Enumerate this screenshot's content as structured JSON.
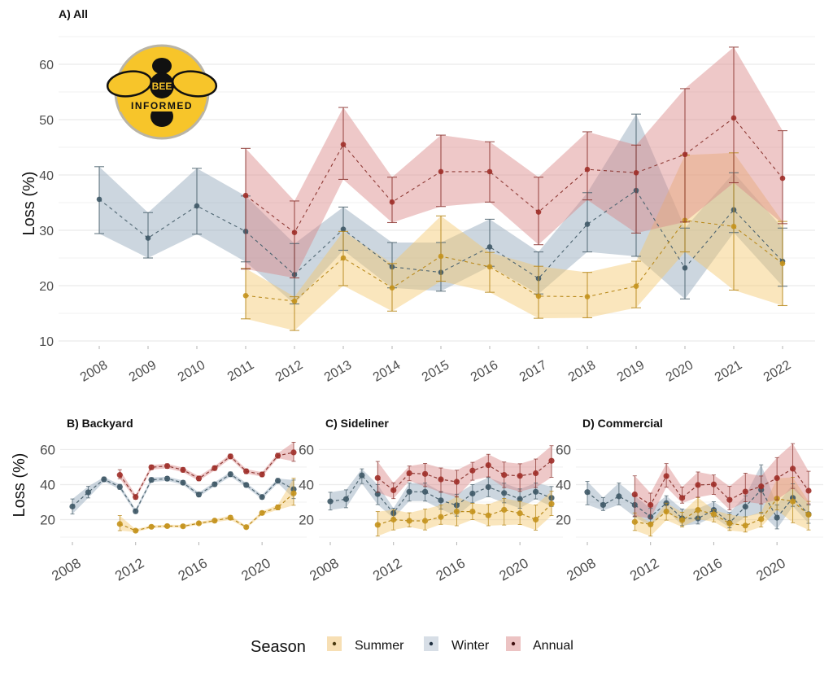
{
  "colors": {
    "summer": {
      "point": "#c4921c",
      "line": "#b98a1d",
      "ribbon": "#f3c86d"
    },
    "winter": {
      "point": "#3e5866",
      "line": "#4d6470",
      "ribbon": "#8ea5b8"
    },
    "annual": {
      "point": "#9e2e28",
      "line": "#8e3a35",
      "ribbon": "#d98585"
    },
    "grid": "#ebebeb",
    "tick": "#b3b3b3"
  },
  "logo": {
    "line1": "BEE",
    "line2": "INFORMED"
  },
  "legend": {
    "title": "Season",
    "items": [
      {
        "key": "summer",
        "label": "Summer"
      },
      {
        "key": "winter",
        "label": "Winter"
      },
      {
        "key": "annual",
        "label": "Annual"
      }
    ]
  },
  "chart_data": [
    {
      "type": "line",
      "title": "A) All",
      "xlabel": "",
      "ylabel": "Loss (%)",
      "ylim": [
        10,
        65
      ],
      "yticks": [
        10,
        20,
        30,
        40,
        50,
        60
      ],
      "xlim": [
        2008,
        2022
      ],
      "xticks": [
        2008,
        2009,
        2010,
        2011,
        2012,
        2013,
        2014,
        2015,
        2016,
        2017,
        2018,
        2019,
        2020,
        2021,
        2022
      ],
      "grid": true,
      "series": [
        {
          "name": "Winter",
          "key": "winter",
          "x": [
            2008,
            2009,
            2010,
            2011,
            2012,
            2013,
            2014,
            2015,
            2016,
            2017,
            2018,
            2019,
            2020,
            2021,
            2022
          ],
          "y": [
            35.6,
            28.6,
            34.4,
            29.8,
            22.0,
            30.2,
            23.4,
            22.4,
            27.0,
            21.3,
            31.1,
            37.2,
            23.2,
            33.7,
            24.4
          ],
          "lower": [
            29.4,
            25.0,
            29.3,
            24.3,
            16.7,
            26.4,
            19.6,
            19.0,
            23.5,
            18.5,
            26.1,
            25.3,
            17.6,
            29.6,
            19.9
          ],
          "upper": [
            41.5,
            33.2,
            41.2,
            36.2,
            27.6,
            34.2,
            27.8,
            27.8,
            32.0,
            26.1,
            36.8,
            51.0,
            30.4,
            40.4,
            30.4
          ]
        },
        {
          "name": "Summer",
          "key": "summer",
          "x": [
            2011,
            2012,
            2013,
            2014,
            2015,
            2016,
            2017,
            2018,
            2019,
            2020,
            2021,
            2022
          ],
          "y": [
            18.2,
            17.2,
            25.0,
            19.6,
            25.3,
            23.4,
            18.1,
            18.0,
            19.9,
            31.8,
            30.7,
            24.0
          ],
          "lower": [
            14.0,
            11.9,
            20.0,
            15.4,
            20.8,
            18.8,
            14.1,
            14.2,
            16.0,
            26.1,
            19.2,
            16.4
          ],
          "upper": [
            23.1,
            18.0,
            29.8,
            24.0,
            32.6,
            26.0,
            23.5,
            22.4,
            24.4,
            43.6,
            44.0,
            31.6
          ]
        },
        {
          "name": "Annual",
          "key": "annual",
          "x": [
            2011,
            2012,
            2013,
            2014,
            2015,
            2016,
            2017,
            2018,
            2019,
            2020,
            2021,
            2022
          ],
          "y": [
            36.3,
            29.6,
            45.5,
            35.1,
            40.6,
            40.6,
            33.3,
            41.0,
            40.4,
            43.7,
            50.3,
            39.4
          ],
          "lower": [
            23.0,
            21.4,
            39.2,
            31.4,
            34.3,
            35.1,
            27.4,
            35.5,
            29.5,
            31.5,
            38.6,
            31.2
          ],
          "upper": [
            44.8,
            35.3,
            52.2,
            39.6,
            47.2,
            46.0,
            39.6,
            47.8,
            45.4,
            55.6,
            63.1,
            48.0
          ]
        }
      ]
    },
    {
      "type": "line",
      "title": "B) Backyard",
      "xlabel": "",
      "ylabel": "Loss (%)",
      "ylim": [
        10,
        63
      ],
      "yticks": [
        20,
        40,
        60
      ],
      "xlim": [
        2008,
        2022
      ],
      "xticks": [
        2008,
        2012,
        2016,
        2020
      ],
      "grid": true,
      "series": [
        {
          "name": "Winter",
          "key": "winter",
          "x": [
            2008,
            2009,
            2010,
            2011,
            2012,
            2013,
            2014,
            2015,
            2016,
            2017,
            2018,
            2019,
            2020,
            2021,
            2022
          ],
          "y": [
            27.5,
            35.6,
            43.0,
            38.7,
            24.8,
            42.7,
            43.4,
            41.1,
            34.3,
            40.2,
            45.9,
            39.8,
            32.9,
            42.2,
            37.4
          ],
          "lower": [
            23.2,
            32.4,
            41.8,
            37.3,
            23.6,
            41.5,
            42.2,
            39.9,
            33.1,
            39.0,
            44.6,
            38.6,
            31.7,
            40.9,
            32.0
          ],
          "upper": [
            31.8,
            39.0,
            44.3,
            40.1,
            26.0,
            44.0,
            44.6,
            42.3,
            35.5,
            41.4,
            47.2,
            41.0,
            34.1,
            43.5,
            42.6
          ]
        },
        {
          "name": "Summer",
          "key": "summer",
          "x": [
            2011,
            2012,
            2013,
            2014,
            2015,
            2016,
            2017,
            2018,
            2019,
            2020,
            2021,
            2022
          ],
          "y": [
            17.5,
            13.7,
            15.9,
            16.3,
            16.2,
            17.9,
            19.4,
            21.1,
            15.7,
            23.8,
            27.0,
            35.0
          ],
          "lower": [
            13.7,
            12.9,
            15.1,
            15.5,
            15.4,
            17.1,
            18.5,
            19.9,
            14.9,
            22.8,
            25.6,
            28.2
          ],
          "upper": [
            22.3,
            14.5,
            16.7,
            17.1,
            17.0,
            18.7,
            20.3,
            22.3,
            16.5,
            24.8,
            28.4,
            43.6
          ]
        },
        {
          "name": "Annual",
          "key": "annual",
          "x": [
            2011,
            2012,
            2013,
            2014,
            2015,
            2016,
            2017,
            2018,
            2019,
            2020,
            2021,
            2022
          ],
          "y": [
            45.5,
            32.9,
            49.9,
            50.6,
            48.4,
            43.5,
            49.4,
            56.1,
            47.6,
            45.8,
            56.5,
            58.4
          ],
          "lower": [
            43.4,
            31.6,
            48.6,
            49.3,
            47.1,
            42.2,
            48.1,
            54.8,
            46.3,
            44.5,
            55.1,
            53.3
          ],
          "upper": [
            48.5,
            34.2,
            51.2,
            51.9,
            49.7,
            44.8,
            50.7,
            57.4,
            48.9,
            47.1,
            57.9,
            64.2
          ]
        }
      ]
    },
    {
      "type": "line",
      "title": "C) Sideliner",
      "xlabel": "",
      "ylabel": "",
      "ylim": [
        10,
        63
      ],
      "yticks": [
        20,
        40,
        60
      ],
      "xlim": [
        2008,
        2022
      ],
      "xticks": [
        2008,
        2012,
        2016,
        2020
      ],
      "grid": true,
      "series": [
        {
          "name": "Winter",
          "key": "winter",
          "x": [
            2008,
            2009,
            2010,
            2011,
            2012,
            2013,
            2014,
            2015,
            2016,
            2017,
            2018,
            2019,
            2020,
            2021,
            2022
          ],
          "y": [
            30.4,
            31.7,
            45.3,
            34.6,
            23.7,
            35.9,
            35.9,
            31.0,
            28.2,
            34.9,
            38.6,
            35.2,
            31.8,
            35.9,
            32.4
          ],
          "lower": [
            25.5,
            26.8,
            40.6,
            28.6,
            20.8,
            30.6,
            30.6,
            26.0,
            22.0,
            29.6,
            33.1,
            29.6,
            26.5,
            31.8,
            27.5
          ],
          "upper": [
            35.6,
            37.0,
            49.0,
            40.0,
            26.5,
            40.9,
            40.9,
            36.0,
            34.5,
            40.0,
            44.0,
            40.8,
            37.5,
            40.9,
            38.9
          ]
        },
        {
          "name": "Summer",
          "key": "summer",
          "x": [
            2011,
            2012,
            2013,
            2014,
            2015,
            2016,
            2017,
            2018,
            2019,
            2020,
            2021,
            2022
          ],
          "y": [
            17.0,
            20.0,
            19.3,
            19.3,
            21.5,
            24.6,
            24.6,
            22.4,
            25.6,
            23.6,
            20.0,
            29.0
          ],
          "lower": [
            10.6,
            14.1,
            15.8,
            14.1,
            17.3,
            16.5,
            20.0,
            16.5,
            16.9,
            17.2,
            14.0,
            22.3
          ],
          "upper": [
            24.6,
            25.6,
            23.9,
            26.0,
            28.3,
            33.1,
            29.3,
            28.7,
            32.1,
            30.4,
            28.3,
            36.2
          ]
        },
        {
          "name": "Annual",
          "key": "annual",
          "x": [
            2011,
            2012,
            2013,
            2014,
            2015,
            2016,
            2017,
            2018,
            2019,
            2020,
            2021,
            2022
          ],
          "y": [
            43.8,
            36.8,
            46.5,
            46.1,
            43.0,
            41.6,
            48.0,
            51.1,
            45.5,
            45.0,
            46.5,
            53.6
          ],
          "lower": [
            35.6,
            32.0,
            42.2,
            38.9,
            35.6,
            32.9,
            42.5,
            44.4,
            38.3,
            36.1,
            38.3,
            44.2
          ],
          "upper": [
            53.2,
            41.0,
            50.6,
            52.1,
            49.5,
            48.2,
            52.7,
            57.3,
            52.9,
            51.9,
            54.6,
            62.2
          ]
        }
      ]
    },
    {
      "type": "line",
      "title": "D) Commercial",
      "xlabel": "",
      "ylabel": "",
      "ylim": [
        10,
        63
      ],
      "yticks": [
        20,
        40,
        60
      ],
      "xlim": [
        2008,
        2022
      ],
      "xticks": [
        2008,
        2012,
        2016,
        2020
      ],
      "grid": true,
      "series": [
        {
          "name": "Winter",
          "key": "winter",
          "x": [
            2008,
            2009,
            2010,
            2011,
            2012,
            2013,
            2014,
            2015,
            2016,
            2017,
            2018,
            2019,
            2020,
            2021,
            2022
          ],
          "y": [
            35.7,
            28.4,
            33.3,
            28.4,
            21.6,
            29.4,
            20.7,
            20.7,
            25.5,
            18.2,
            27.4,
            37.0,
            21.1,
            32.4,
            23.1
          ],
          "lower": [
            28.5,
            25.2,
            28.5,
            21.6,
            16.2,
            25.6,
            16.6,
            17.5,
            21.6,
            15.3,
            21.6,
            23.6,
            14.7,
            27.6,
            17.9
          ],
          "upper": [
            41.8,
            32.6,
            40.9,
            33.6,
            26.4,
            33.6,
            26.0,
            26.4,
            30.2,
            24.0,
            33.6,
            51.3,
            28.4,
            40.4,
            28.4
          ]
        },
        {
          "name": "Summer",
          "key": "summer",
          "x": [
            2011,
            2012,
            2013,
            2014,
            2015,
            2016,
            2017,
            2018,
            2019,
            2020,
            2021,
            2022
          ],
          "y": [
            18.7,
            17.3,
            24.6,
            19.7,
            25.5,
            23.1,
            17.9,
            16.6,
            20.3,
            32.0,
            30.4,
            22.8
          ],
          "lower": [
            13.8,
            10.6,
            19.7,
            15.8,
            20.3,
            18.7,
            13.8,
            12.9,
            15.8,
            25.6,
            18.2,
            14.1
          ],
          "upper": [
            23.8,
            18.1,
            29.4,
            24.2,
            32.6,
            25.6,
            22.8,
            21.6,
            24.2,
            43.6,
            44.2,
            30.4
          ]
        },
        {
          "name": "Annual",
          "key": "annual",
          "x": [
            2011,
            2012,
            2013,
            2014,
            2015,
            2016,
            2017,
            2018,
            2019,
            2020,
            2021,
            2022
          ],
          "y": [
            34.4,
            28.4,
            44.9,
            32.4,
            39.8,
            40.1,
            31.3,
            36.0,
            39.0,
            43.7,
            49.1,
            36.5
          ],
          "lower": [
            22.0,
            20.7,
            38.6,
            29.4,
            32.8,
            34.4,
            25.6,
            30.2,
            29.0,
            31.3,
            37.8,
            29.0
          ],
          "upper": [
            45.0,
            35.1,
            52.0,
            38.6,
            47.2,
            45.5,
            39.0,
            46.5,
            44.9,
            55.4,
            63.4,
            47.6
          ]
        }
      ]
    }
  ]
}
